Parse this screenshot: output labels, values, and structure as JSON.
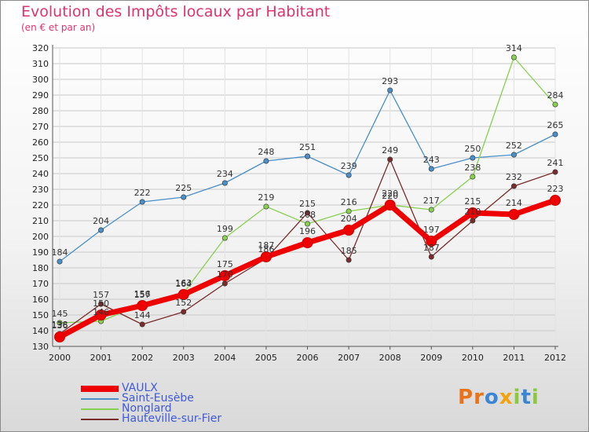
{
  "title": "Evolution des Impôts locaux par Habitant",
  "subtitle": "(en € et par an)",
  "brand": "Proxiti",
  "colors": {
    "title": "#e0336b",
    "grid": "#c8c8c8",
    "axis": "#555555",
    "legend_text": "#4059d8",
    "brand_letters": [
      "#e8731a",
      "#e8731a",
      "#3a86d4",
      "#f2a20c",
      "#8cc83c",
      "#3a86d4",
      "#8cc83c"
    ]
  },
  "chart_data": {
    "type": "line",
    "title": "Evolution des Impôts locaux par Habitant",
    "subtitle": "(en € et par an)",
    "xlabel": "",
    "ylabel": "",
    "x": [
      "2000",
      "2001",
      "2002",
      "2003",
      "2004",
      "2005",
      "2006",
      "2007",
      "2008",
      "2009",
      "2010",
      "2011",
      "2012"
    ],
    "ylim": [
      130,
      320
    ],
    "yticks": [
      "130",
      "140",
      "150",
      "160",
      "170",
      "180",
      "190",
      "200",
      "210",
      "220",
      "230",
      "240",
      "250",
      "260",
      "270",
      "280",
      "290",
      "300",
      "310",
      "320"
    ],
    "grid": true,
    "legend_position": "bottom-left",
    "series": [
      {
        "name": "Saint-Eusèbe",
        "color": "#4a8fc9",
        "values": [
          184,
          204,
          222,
          225,
          234,
          248,
          251,
          239,
          293,
          243,
          250,
          252,
          265
        ],
        "labels": [
          "184",
          "204",
          "222",
          "225",
          "234",
          "248",
          "251",
          "239",
          "293",
          "243",
          "250",
          "252",
          "265"
        ]
      },
      {
        "name": "Nonglard",
        "color": "#88d050",
        "values": [
          145,
          146,
          157,
          164,
          199,
          219,
          208,
          216,
          220,
          217,
          238,
          314,
          284
        ],
        "labels": [
          "145",
          "146",
          "157",
          "164",
          "199",
          "219",
          "208",
          "216",
          "220",
          "217",
          "238",
          "314",
          "284"
        ]
      },
      {
        "name": "Hauteville-sur-Fier",
        "color": "#7a2c2c",
        "values": [
          138,
          157,
          144,
          152,
          170,
          186,
          215,
          185,
          249,
          187,
          210,
          232,
          241
        ],
        "labels": [
          "138",
          "157",
          "144",
          "152",
          "170",
          "186",
          "215",
          "185",
          "249",
          "187",
          "210",
          "232",
          "241"
        ]
      },
      {
        "name": "VAULX",
        "color": "#ee0000",
        "values": [
          136,
          150,
          156,
          163,
          175,
          187,
          196,
          204,
          220,
          197,
          215,
          214,
          223
        ],
        "labels": [
          "136",
          "150",
          "156",
          "163",
          "175",
          "187",
          "196",
          "204",
          "220",
          "197",
          "215",
          "214",
          "223"
        ]
      }
    ],
    "legend": [
      "VAULX",
      "Saint-Eusèbe",
      "Nonglard",
      "Hauteville-sur-Fier"
    ]
  }
}
